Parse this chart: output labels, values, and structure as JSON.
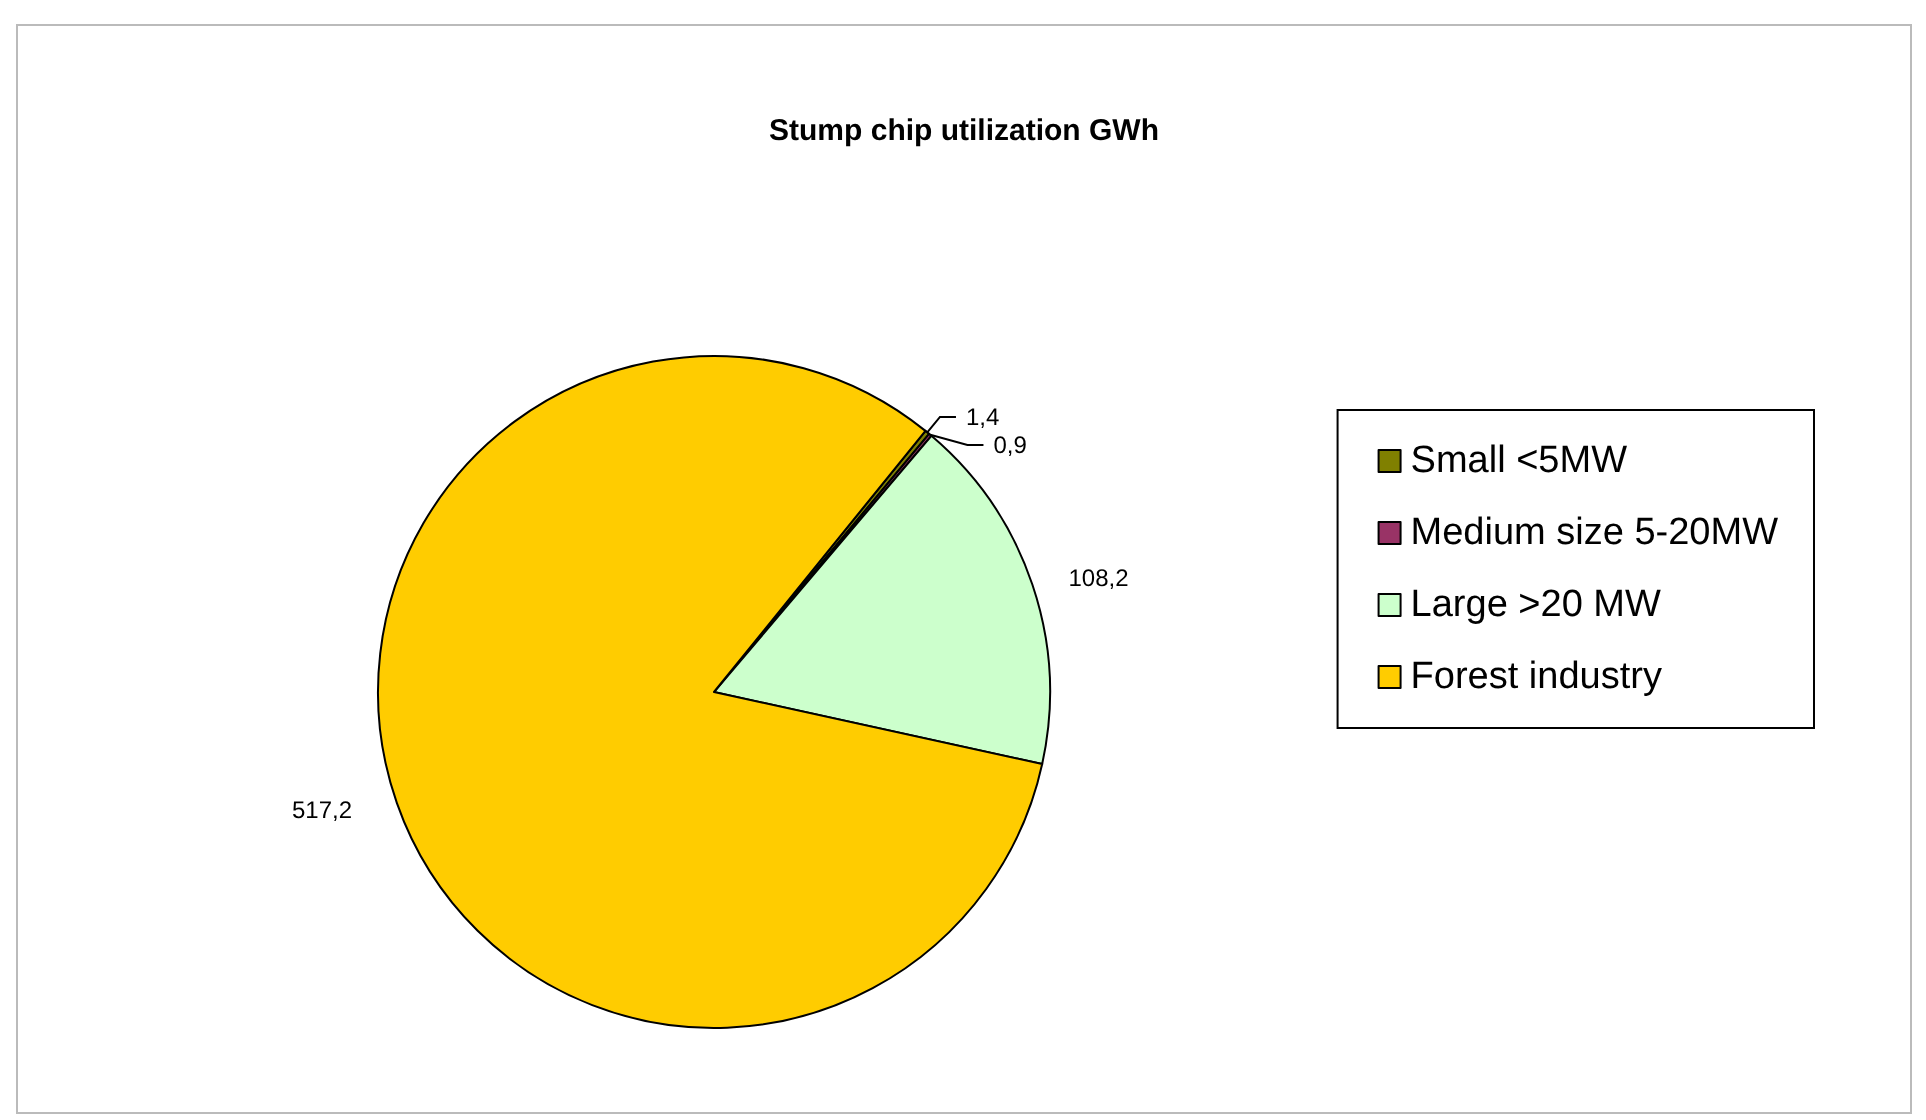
{
  "chart_data": {
    "type": "pie",
    "title": "Stump chip utilization GWh",
    "categories": [
      "Small <5MW",
      "Medium size 5-20MW",
      "Large >20 MW",
      "Forest industry"
    ],
    "values": [
      1.4,
      0.9,
      108.2,
      517.2
    ],
    "value_labels": [
      "1,4",
      "0,9",
      "108,2",
      "517,2"
    ],
    "colors": [
      "#808000",
      "#993366",
      "#ccffcc",
      "#ffcc00"
    ],
    "legend": "right"
  }
}
